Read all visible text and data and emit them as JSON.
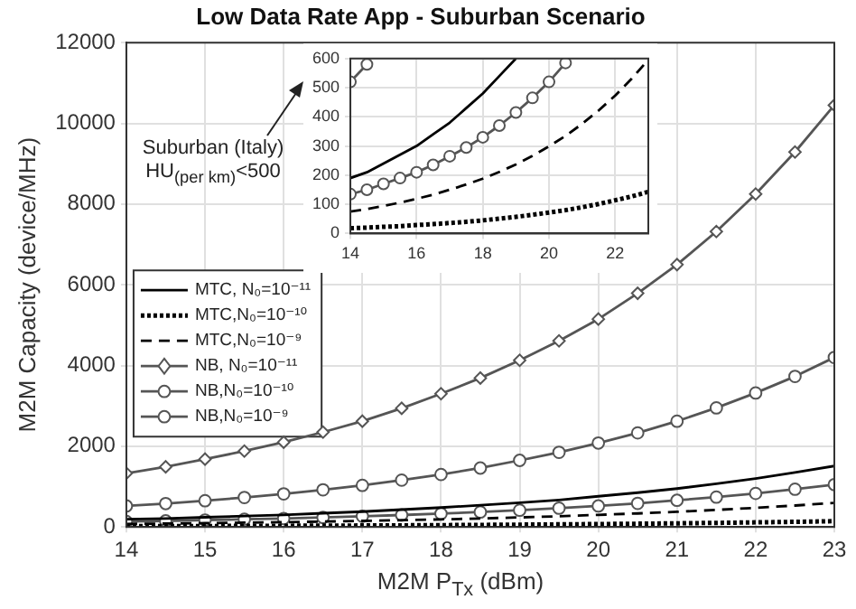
{
  "chart_data": [
    {
      "type": "line",
      "title": "Low Data Rate App - Suburban Scenario",
      "xlabel": "M2M P$_{Tx}$ (dBm)",
      "ylabel": "M2M Capacity (device/MHz)",
      "x": [
        14,
        14.5,
        15,
        15.5,
        16,
        16.5,
        17,
        17.5,
        18,
        18.5,
        19,
        19.5,
        20,
        20.5,
        21,
        21.5,
        22,
        22.5,
        23
      ],
      "series": [
        {
          "name": "MTC, N₀=10⁻¹¹",
          "color": "#000000",
          "line_style": "solid",
          "marker": "none",
          "values": [
            190,
            210,
            240,
            270,
            300,
            340,
            380,
            430,
            480,
            540,
            600,
            670,
            760,
            850,
            950,
            1070,
            1200,
            1350,
            1510
          ]
        },
        {
          "name": "MTC,N₀=10⁻¹⁰",
          "color": "#000000",
          "line_style": "dotted",
          "marker": "none",
          "values": [
            18,
            20,
            23,
            25,
            29,
            32,
            36,
            40,
            45,
            51,
            57,
            64,
            72,
            80,
            90,
            101,
            114,
            127,
            143
          ]
        },
        {
          "name": "MTC,N₀=10⁻⁹",
          "color": "#000000",
          "line_style": "dashed",
          "marker": "none",
          "values": [
            75,
            84,
            94,
            106,
            119,
            133,
            150,
            168,
            188,
            211,
            237,
            266,
            299,
            335,
            376,
            422,
            473,
            531,
            596
          ]
        },
        {
          "name": "NB, N₀=10⁻¹¹",
          "color": "#555555",
          "line_style": "solid",
          "marker": "diamond",
          "values": [
            1330,
            1490,
            1680,
            1880,
            2100,
            2350,
            2620,
            2940,
            3300,
            3690,
            4130,
            4610,
            5150,
            5790,
            6500,
            7320,
            8250,
            9290,
            10450
          ]
        },
        {
          "name": "NB,N₀=10⁻¹⁰",
          "color": "#555555",
          "line_style": "solid",
          "marker": "circle",
          "values": [
            135,
            150,
            170,
            190,
            210,
            235,
            265,
            295,
            330,
            370,
            415,
            465,
            520,
            585,
            660,
            740,
            830,
            935,
            1050
          ]
        },
        {
          "name": "NB,N₀=10⁻⁹",
          "color": "#555555",
          "line_style": "solid",
          "marker": "circle",
          "values": [
            520,
            580,
            650,
            730,
            820,
            920,
            1030,
            1160,
            1300,
            1460,
            1650,
            1850,
            2080,
            2330,
            2620,
            2950,
            3320,
            3730,
            4200
          ]
        }
      ],
      "xlim": [
        14,
        23
      ],
      "xticks": [
        14,
        15,
        16,
        17,
        18,
        19,
        20,
        21,
        22,
        23
      ],
      "ylim": [
        0,
        12000
      ],
      "yticks": [
        0,
        2000,
        4000,
        6000,
        8000,
        10000,
        12000
      ],
      "grid": true,
      "legend": "center left",
      "annotations": [
        "Suburban (Italy)\nHU$_{(per km)}$<500"
      ]
    },
    {
      "type": "line",
      "x": [
        14,
        14.5,
        15,
        15.5,
        16,
        16.5,
        17,
        17.5,
        18,
        18.5,
        19,
        19.5,
        20,
        20.5,
        21,
        21.5,
        22,
        22.5,
        23
      ],
      "series": [
        {
          "color": "#000000",
          "line_style": "solid",
          "marker": "none",
          "values": [
            190,
            210,
            240,
            270,
            300,
            340,
            380,
            430,
            480,
            540,
            600,
            null,
            null,
            null,
            null,
            null,
            null,
            null,
            null
          ]
        },
        {
          "color": "#000000",
          "line_style": "dotted",
          "marker": "none",
          "values": [
            18,
            20,
            23,
            25,
            29,
            32,
            36,
            40,
            45,
            51,
            57,
            64,
            72,
            80,
            90,
            101,
            114,
            127,
            143
          ]
        },
        {
          "color": "#000000",
          "line_style": "dashed",
          "marker": "none",
          "values": [
            75,
            84,
            94,
            106,
            119,
            133,
            150,
            168,
            188,
            211,
            237,
            266,
            299,
            335,
            376,
            422,
            473,
            531,
            596
          ]
        },
        {
          "color": "#555555",
          "line_style": "solid",
          "marker": "circle",
          "values": [
            135,
            150,
            170,
            190,
            210,
            235,
            265,
            295,
            330,
            370,
            415,
            465,
            520,
            585,
            null,
            null,
            null,
            null,
            null
          ]
        },
        {
          "color": "#555555",
          "line_style": "solid",
          "marker": "circle",
          "values": [
            520,
            580,
            null,
            null,
            null,
            null,
            null,
            null,
            null,
            null,
            null,
            null,
            null,
            null,
            null,
            null,
            null,
            null,
            null
          ]
        }
      ],
      "xlim": [
        14,
        23
      ],
      "xticks": [
        14,
        16,
        18,
        20,
        22
      ],
      "ylim": [
        0,
        600
      ],
      "yticks": [
        0,
        100,
        200,
        300,
        400,
        500,
        600
      ],
      "grid": true
    }
  ]
}
